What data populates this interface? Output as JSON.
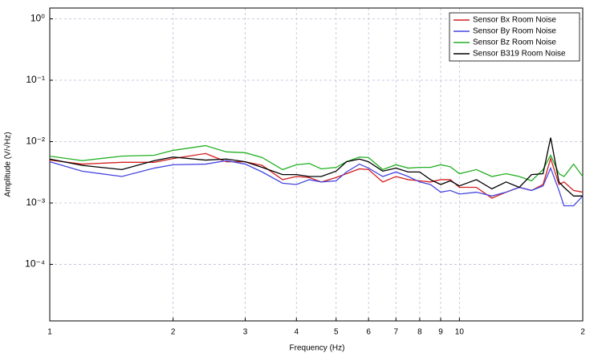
{
  "chart_data": {
    "type": "line",
    "x_label": "Frequency (Hz)",
    "y_label": "Amplitude (V/√Hz)",
    "x": [
      1,
      1.2,
      1.5,
      1.8,
      2,
      2.4,
      2.7,
      3,
      3.3,
      3.7,
      4,
      4.3,
      4.6,
      5,
      5.3,
      5.7,
      6,
      6.5,
      7,
      7.5,
      8,
      8.5,
      9,
      9.5,
      10,
      11,
      12,
      13,
      14,
      15,
      16,
      16.7,
      17.5,
      18,
      19,
      20
    ],
    "series": [
      {
        "name": "Sensor Bx Room Noise",
        "color": "#d42020",
        "values": [
          0.005,
          0.0043,
          0.0046,
          0.0046,
          0.0053,
          0.0064,
          0.0047,
          0.0047,
          0.0041,
          0.0024,
          0.0027,
          0.0026,
          0.0022,
          0.0026,
          0.003,
          0.0036,
          0.0035,
          0.0022,
          0.0027,
          0.0024,
          0.0023,
          0.0022,
          0.0024,
          0.0024,
          0.0018,
          0.0018,
          0.0012,
          0.0015,
          0.0018,
          0.0016,
          0.002,
          0.0053,
          0.002,
          0.0022,
          0.0016,
          0.0015
        ]
      },
      {
        "name": "Sensor By Room Noise",
        "color": "#4646e0",
        "values": [
          0.0047,
          0.0033,
          0.0027,
          0.0037,
          0.0042,
          0.0043,
          0.0049,
          0.0043,
          0.0032,
          0.0021,
          0.002,
          0.0024,
          0.0022,
          0.0023,
          0.0032,
          0.0043,
          0.0037,
          0.0027,
          0.0032,
          0.0027,
          0.0022,
          0.002,
          0.0015,
          0.0016,
          0.0014,
          0.0015,
          0.0013,
          0.0015,
          0.0018,
          0.0016,
          0.0019,
          0.0037,
          0.0016,
          0.0009,
          0.0009,
          0.0013
        ]
      },
      {
        "name": "Sensor Bz Room Noise",
        "color": "#22b022",
        "values": [
          0.0058,
          0.0049,
          0.0058,
          0.006,
          0.0072,
          0.0086,
          0.0068,
          0.0066,
          0.0055,
          0.0035,
          0.0042,
          0.0044,
          0.0036,
          0.0038,
          0.0047,
          0.0056,
          0.0055,
          0.0035,
          0.0042,
          0.0037,
          0.0038,
          0.0038,
          0.0042,
          0.0039,
          0.003,
          0.0035,
          0.0027,
          0.003,
          0.0027,
          0.0023,
          0.0035,
          0.006,
          0.003,
          0.0027,
          0.0043,
          0.0027
        ]
      },
      {
        "name": "Sensor B319 Room Noise",
        "color": "#000000",
        "values": [
          0.0052,
          0.0041,
          0.0035,
          0.0049,
          0.0056,
          0.005,
          0.0052,
          0.0047,
          0.0038,
          0.0029,
          0.0029,
          0.0027,
          0.0027,
          0.0033,
          0.0047,
          0.0052,
          0.0047,
          0.0033,
          0.0037,
          0.0032,
          0.0032,
          0.0024,
          0.002,
          0.0023,
          0.0019,
          0.0024,
          0.0017,
          0.0022,
          0.0018,
          0.0029,
          0.003,
          0.0116,
          0.0022,
          0.0018,
          0.0013,
          0.0013
        ]
      }
    ],
    "xlim": [
      1,
      20
    ],
    "ylim": [
      1.2e-05,
      1.5
    ],
    "x_log": true,
    "y_log": true,
    "xticks": [
      1,
      2,
      3,
      4,
      5,
      6,
      7,
      8,
      9,
      10,
      {
        "value": 20,
        "label": "2"
      }
    ],
    "yticks": [
      {
        "value": 1,
        "label": "10⁰"
      },
      {
        "value": 0.1,
        "label": "10⁻¹"
      },
      {
        "value": 0.01,
        "label": "10⁻²"
      },
      {
        "value": 0.001,
        "label": "10⁻³"
      },
      {
        "value": 0.0001,
        "label": "10⁻⁴"
      }
    ],
    "grid": true,
    "legend": "upper-right"
  }
}
